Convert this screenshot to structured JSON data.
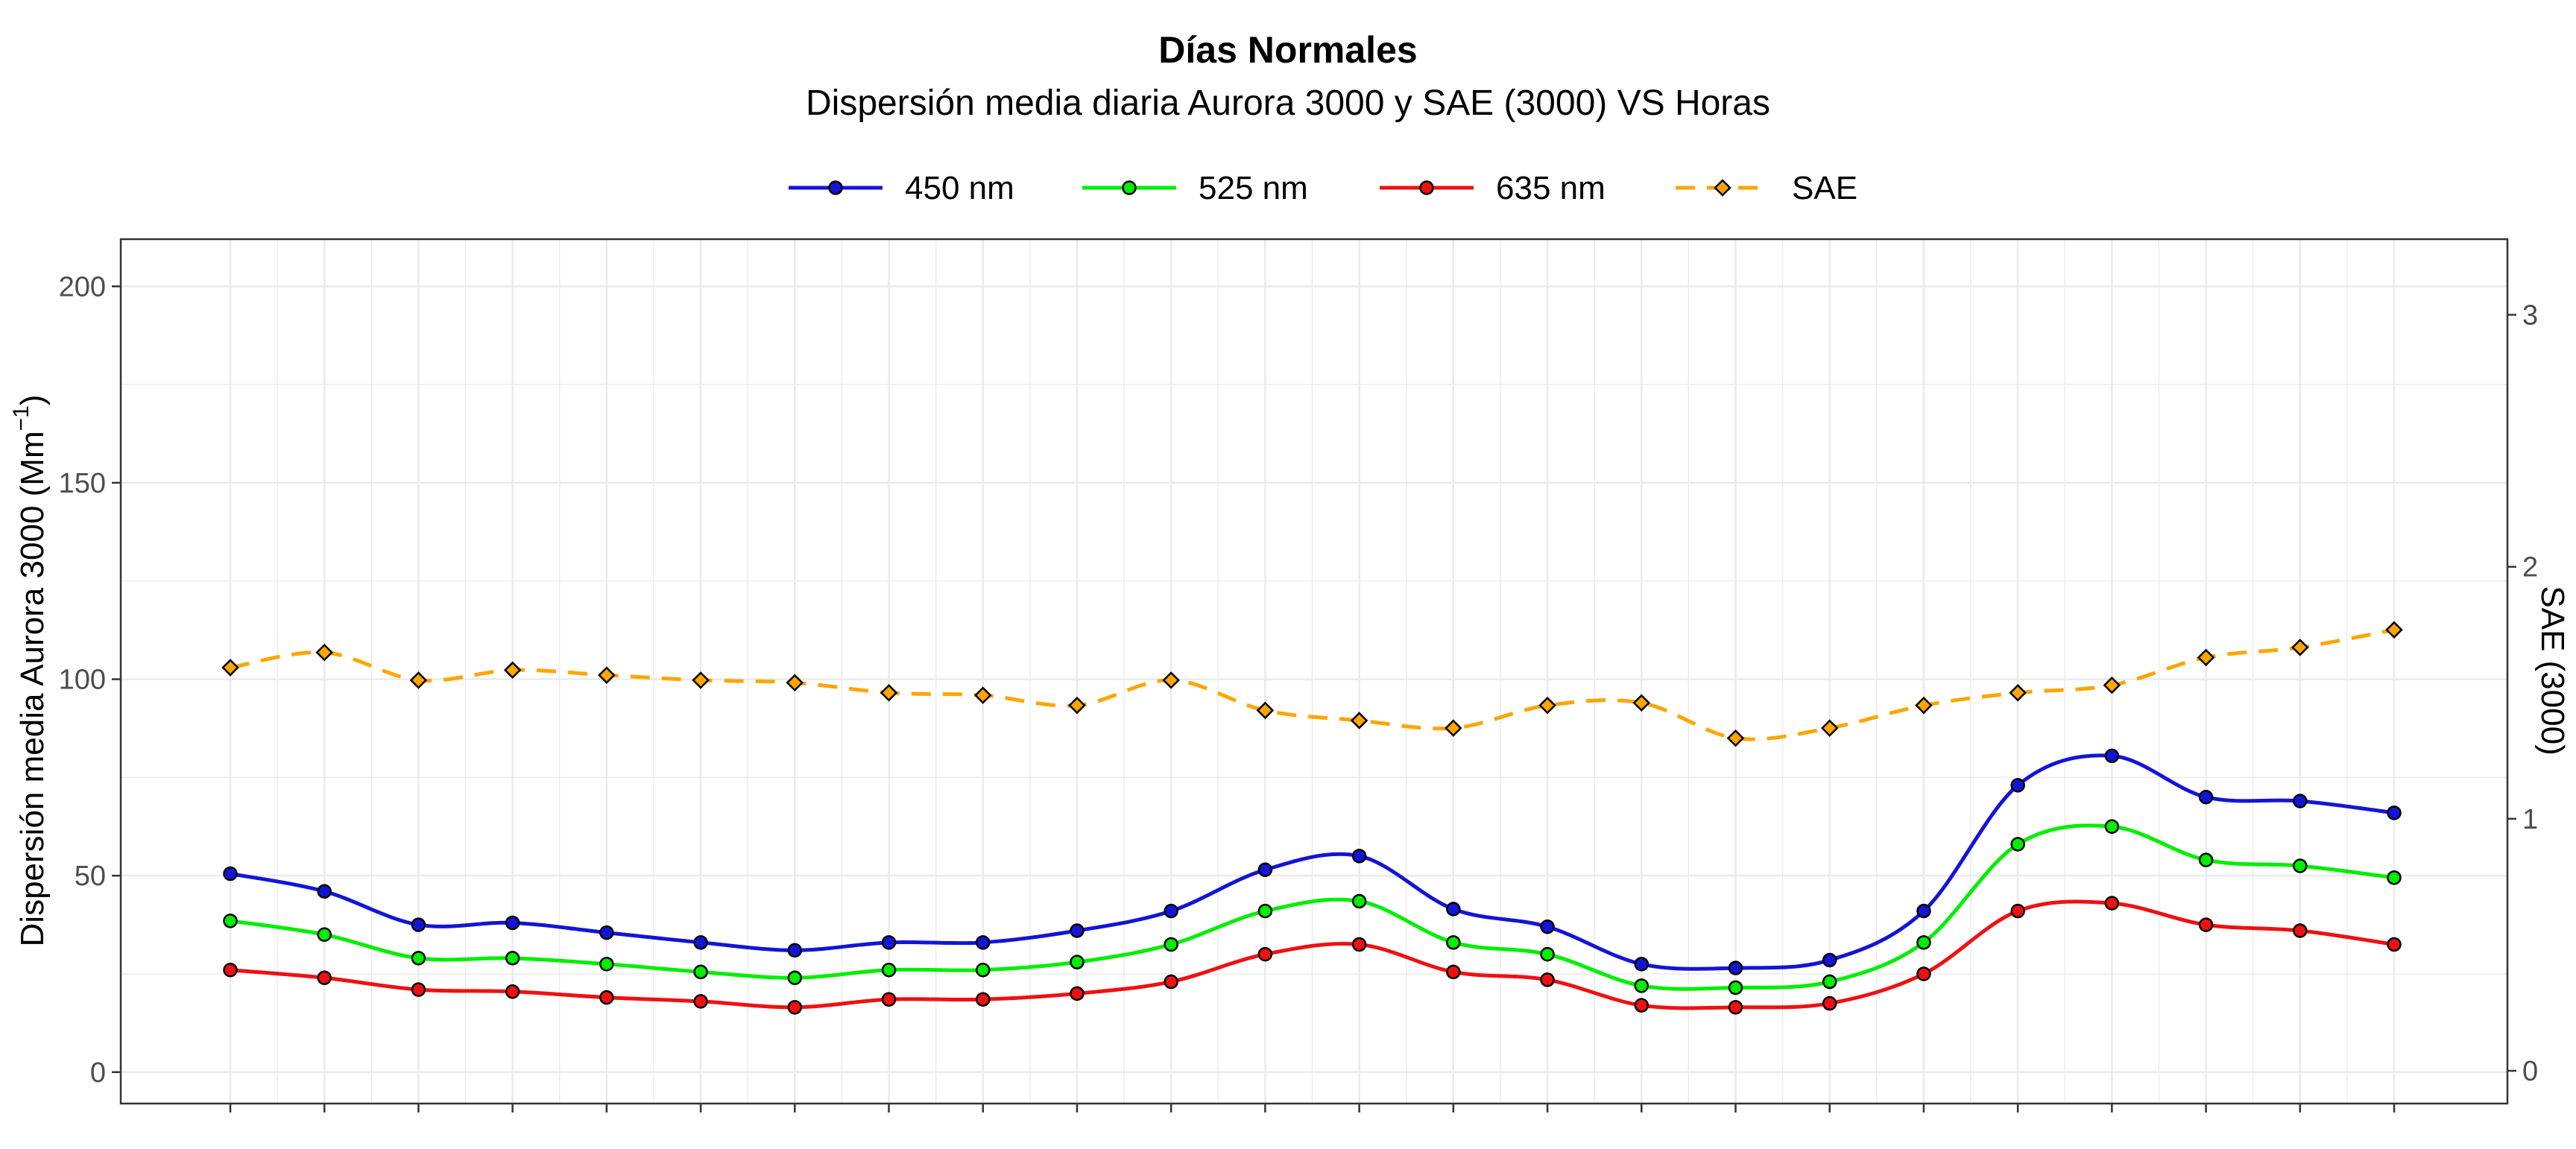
{
  "chart_data": {
    "type": "line",
    "title": "Días Normales",
    "subtitle": "Dispersión media diaria Aurora 3000 y SAE (3000) VS Horas",
    "ylabel": "Dispersión media Aurora 3000 (Mm",
    "ylabel_superscript": "−1",
    "ylabel_close": ")",
    "y2label": "SAE (3000)",
    "ylim": [
      -8,
      212
    ],
    "y2lim": [
      -0.13,
      3.3
    ],
    "yticks": [
      "0",
      "50",
      "100",
      "150",
      "200"
    ],
    "y2ticks": [
      "0",
      "1",
      "2",
      "3"
    ],
    "grid": true,
    "legend_position": "top",
    "x": [
      1,
      2,
      3,
      4,
      5,
      6,
      7,
      8,
      9,
      10,
      11,
      12,
      13,
      14,
      15,
      16,
      17,
      18,
      19,
      20,
      21,
      22,
      23,
      24
    ],
    "series": [
      {
        "name": "450 nm",
        "color": "#1414d6",
        "marker": "circle",
        "linestyle": "solid",
        "axis": "left",
        "values": [
          50.5,
          46.0,
          37.5,
          38.0,
          35.5,
          33.0,
          31.0,
          33.0,
          33.0,
          36.0,
          41.0,
          51.5,
          55.0,
          41.5,
          37.0,
          27.5,
          26.5,
          28.5,
          41.0,
          73.0,
          80.5,
          70.0,
          69.0,
          66.0
        ]
      },
      {
        "name": "525 nm",
        "color": "#00ee00",
        "marker": "circle",
        "linestyle": "solid",
        "axis": "left",
        "values": [
          38.5,
          35.0,
          29.0,
          29.0,
          27.5,
          25.5,
          24.0,
          26.0,
          26.0,
          28.0,
          32.5,
          41.0,
          43.5,
          33.0,
          30.0,
          22.0,
          21.5,
          23.0,
          33.0,
          58.0,
          62.5,
          54.0,
          52.5,
          49.5
        ]
      },
      {
        "name": "635 nm",
        "color": "#ee1111",
        "marker": "circle",
        "linestyle": "solid",
        "axis": "left",
        "values": [
          26.0,
          24.0,
          21.0,
          20.5,
          19.0,
          18.0,
          16.5,
          18.5,
          18.5,
          20.0,
          23.0,
          30.0,
          32.5,
          25.5,
          23.5,
          17.0,
          16.5,
          17.5,
          25.0,
          41.0,
          43.0,
          37.5,
          36.0,
          32.5
        ]
      },
      {
        "name": "SAE",
        "color": "#ffa500",
        "marker": "diamond",
        "linestyle": "dashed",
        "axis": "right",
        "values": [
          1.6,
          1.66,
          1.55,
          1.59,
          1.57,
          1.55,
          1.54,
          1.5,
          1.49,
          1.45,
          1.55,
          1.43,
          1.39,
          1.36,
          1.45,
          1.46,
          1.32,
          1.36,
          1.45,
          1.5,
          1.53,
          1.64,
          1.68,
          1.75
        ]
      }
    ]
  }
}
